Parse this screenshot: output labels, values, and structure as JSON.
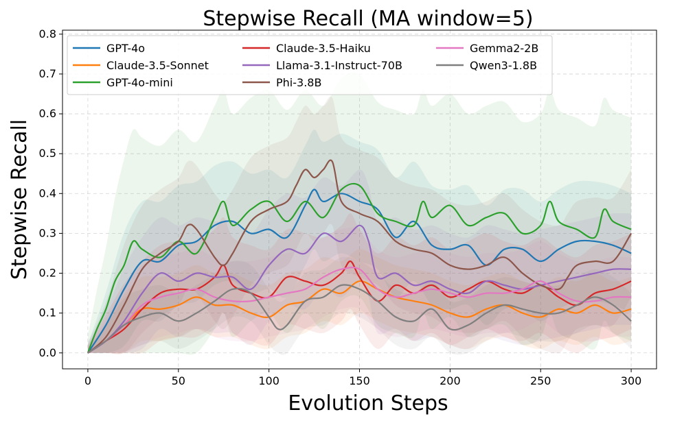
{
  "chart_data": {
    "type": "line",
    "title": "Stepwise Recall (MA window=5)",
    "xlabel": "Evolution Steps",
    "ylabel": "Stepwise Recall",
    "xlim": [
      -14,
      314
    ],
    "ylim": [
      -0.04,
      0.81
    ],
    "xticks": [
      0,
      50,
      100,
      150,
      200,
      250,
      300
    ],
    "yticks": [
      0.0,
      0.1,
      0.2,
      0.3,
      0.4,
      0.5,
      0.6,
      0.7,
      0.8
    ],
    "xtick_labels": [
      "0",
      "50",
      "100",
      "150",
      "200",
      "250",
      "300"
    ],
    "ytick_labels": [
      "0.0",
      "0.1",
      "0.2",
      "0.3",
      "0.4",
      "0.5",
      "0.6",
      "0.7",
      "0.8"
    ],
    "grid": true,
    "legend_position": "top-left",
    "legend_columns": 3,
    "series": [
      {
        "name": "GPT-4o",
        "color": "#1f77b4",
        "x": [
          0,
          10,
          20,
          30,
          40,
          50,
          60,
          70,
          80,
          90,
          100,
          110,
          120,
          125,
          130,
          140,
          150,
          160,
          170,
          180,
          190,
          200,
          210,
          220,
          230,
          240,
          250,
          260,
          270,
          280,
          290,
          300
        ],
        "y": [
          0,
          0.07,
          0.16,
          0.23,
          0.23,
          0.27,
          0.28,
          0.32,
          0.33,
          0.3,
          0.31,
          0.29,
          0.37,
          0.41,
          0.38,
          0.4,
          0.38,
          0.36,
          0.29,
          0.33,
          0.27,
          0.26,
          0.27,
          0.22,
          0.26,
          0.26,
          0.23,
          0.26,
          0.28,
          0.28,
          0.27,
          0.25
        ],
        "band": 0.15
      },
      {
        "name": "Claude-3.5-Sonnet",
        "color": "#ff7f0e",
        "x": [
          0,
          10,
          20,
          30,
          40,
          50,
          60,
          70,
          80,
          90,
          100,
          110,
          120,
          130,
          140,
          150,
          160,
          170,
          180,
          190,
          200,
          210,
          220,
          230,
          240,
          250,
          260,
          270,
          280,
          290,
          300
        ],
        "y": [
          0,
          0.03,
          0.07,
          0.11,
          0.11,
          0.12,
          0.14,
          0.12,
          0.12,
          0.1,
          0.09,
          0.12,
          0.13,
          0.16,
          0.15,
          0.18,
          0.16,
          0.14,
          0.13,
          0.12,
          0.1,
          0.09,
          0.11,
          0.12,
          0.1,
          0.09,
          0.11,
          0.1,
          0.12,
          0.1,
          0.11
        ],
        "band": 0.08
      },
      {
        "name": "GPT-4o-mini",
        "color": "#2ca02c",
        "x": [
          0,
          5,
          10,
          15,
          20,
          25,
          30,
          40,
          50,
          60,
          70,
          75,
          80,
          90,
          100,
          110,
          120,
          130,
          140,
          150,
          160,
          170,
          180,
          185,
          190,
          200,
          210,
          220,
          230,
          240,
          250,
          255,
          260,
          270,
          280,
          285,
          290,
          300
        ],
        "y": [
          0,
          0.06,
          0.11,
          0.18,
          0.22,
          0.28,
          0.26,
          0.24,
          0.28,
          0.25,
          0.34,
          0.38,
          0.32,
          0.36,
          0.38,
          0.33,
          0.38,
          0.34,
          0.41,
          0.42,
          0.35,
          0.33,
          0.32,
          0.38,
          0.34,
          0.37,
          0.32,
          0.34,
          0.35,
          0.3,
          0.32,
          0.38,
          0.33,
          0.31,
          0.29,
          0.36,
          0.33,
          0.31
        ],
        "band": 0.28
      },
      {
        "name": "Claude-3.5-Haiku",
        "color": "#d62728",
        "x": [
          0,
          10,
          20,
          30,
          40,
          50,
          60,
          70,
          75,
          80,
          90,
          100,
          110,
          120,
          130,
          140,
          145,
          150,
          160,
          170,
          180,
          190,
          200,
          210,
          220,
          230,
          240,
          250,
          260,
          270,
          280,
          290,
          300
        ],
        "y": [
          0,
          0.03,
          0.06,
          0.11,
          0.15,
          0.16,
          0.16,
          0.19,
          0.22,
          0.17,
          0.15,
          0.14,
          0.19,
          0.18,
          0.17,
          0.2,
          0.23,
          0.19,
          0.13,
          0.17,
          0.15,
          0.17,
          0.14,
          0.16,
          0.18,
          0.16,
          0.15,
          0.17,
          0.14,
          0.12,
          0.15,
          0.16,
          0.18
        ],
        "band": 0.12
      },
      {
        "name": "Llama-3.1-Instruct-70B",
        "color": "#9467bd",
        "x": [
          0,
          10,
          20,
          30,
          40,
          50,
          60,
          70,
          80,
          90,
          100,
          110,
          120,
          130,
          140,
          150,
          155,
          160,
          170,
          180,
          190,
          200,
          210,
          220,
          230,
          240,
          250,
          260,
          270,
          280,
          290,
          300
        ],
        "y": [
          0,
          0.03,
          0.08,
          0.15,
          0.2,
          0.18,
          0.2,
          0.19,
          0.19,
          0.16,
          0.22,
          0.26,
          0.25,
          0.3,
          0.28,
          0.32,
          0.28,
          0.19,
          0.2,
          0.17,
          0.18,
          0.16,
          0.15,
          0.18,
          0.17,
          0.16,
          0.17,
          0.18,
          0.19,
          0.2,
          0.21,
          0.21
        ],
        "band": 0.14
      },
      {
        "name": "Phi-3.8B",
        "color": "#8c564b",
        "x": [
          0,
          10,
          20,
          30,
          40,
          50,
          55,
          60,
          70,
          75,
          80,
          90,
          100,
          110,
          115,
          120,
          125,
          130,
          135,
          140,
          150,
          160,
          170,
          180,
          190,
          200,
          210,
          220,
          230,
          240,
          250,
          260,
          265,
          270,
          280,
          290,
          300
        ],
        "y": [
          0,
          0.04,
          0.12,
          0.21,
          0.25,
          0.28,
          0.32,
          0.31,
          0.24,
          0.22,
          0.25,
          0.33,
          0.36,
          0.38,
          0.42,
          0.46,
          0.44,
          0.46,
          0.48,
          0.38,
          0.35,
          0.33,
          0.28,
          0.26,
          0.25,
          0.22,
          0.21,
          0.22,
          0.24,
          0.2,
          0.17,
          0.16,
          0.19,
          0.22,
          0.23,
          0.23,
          0.3
        ],
        "band": 0.16
      },
      {
        "name": "Gemma2-2B",
        "color": "#e377c2",
        "x": [
          0,
          10,
          20,
          30,
          40,
          50,
          60,
          70,
          80,
          90,
          100,
          110,
          120,
          130,
          140,
          150,
          160,
          170,
          180,
          190,
          200,
          210,
          220,
          230,
          240,
          250,
          260,
          270,
          280,
          290,
          300
        ],
        "y": [
          0,
          0.03,
          0.07,
          0.12,
          0.14,
          0.15,
          0.16,
          0.14,
          0.13,
          0.13,
          0.14,
          0.15,
          0.16,
          0.19,
          0.21,
          0.21,
          0.16,
          0.14,
          0.15,
          0.16,
          0.15,
          0.14,
          0.15,
          0.15,
          0.16,
          0.18,
          0.15,
          0.13,
          0.13,
          0.14,
          0.14
        ],
        "band": 0.1
      },
      {
        "name": "Qwen3-1.8B",
        "color": "#7f7f7f",
        "x": [
          0,
          10,
          20,
          30,
          40,
          50,
          60,
          70,
          80,
          90,
          100,
          105,
          110,
          120,
          130,
          140,
          150,
          160,
          170,
          180,
          190,
          200,
          210,
          220,
          230,
          240,
          250,
          260,
          270,
          280,
          290,
          300
        ],
        "y": [
          0,
          0.03,
          0.07,
          0.09,
          0.1,
          0.08,
          0.1,
          0.13,
          0.16,
          0.15,
          0.09,
          0.06,
          0.07,
          0.13,
          0.14,
          0.17,
          0.16,
          0.13,
          0.09,
          0.08,
          0.11,
          0.06,
          0.07,
          0.1,
          0.12,
          0.11,
          0.1,
          0.1,
          0.12,
          0.14,
          0.12,
          0.08
        ],
        "band": 0.07
      }
    ]
  }
}
